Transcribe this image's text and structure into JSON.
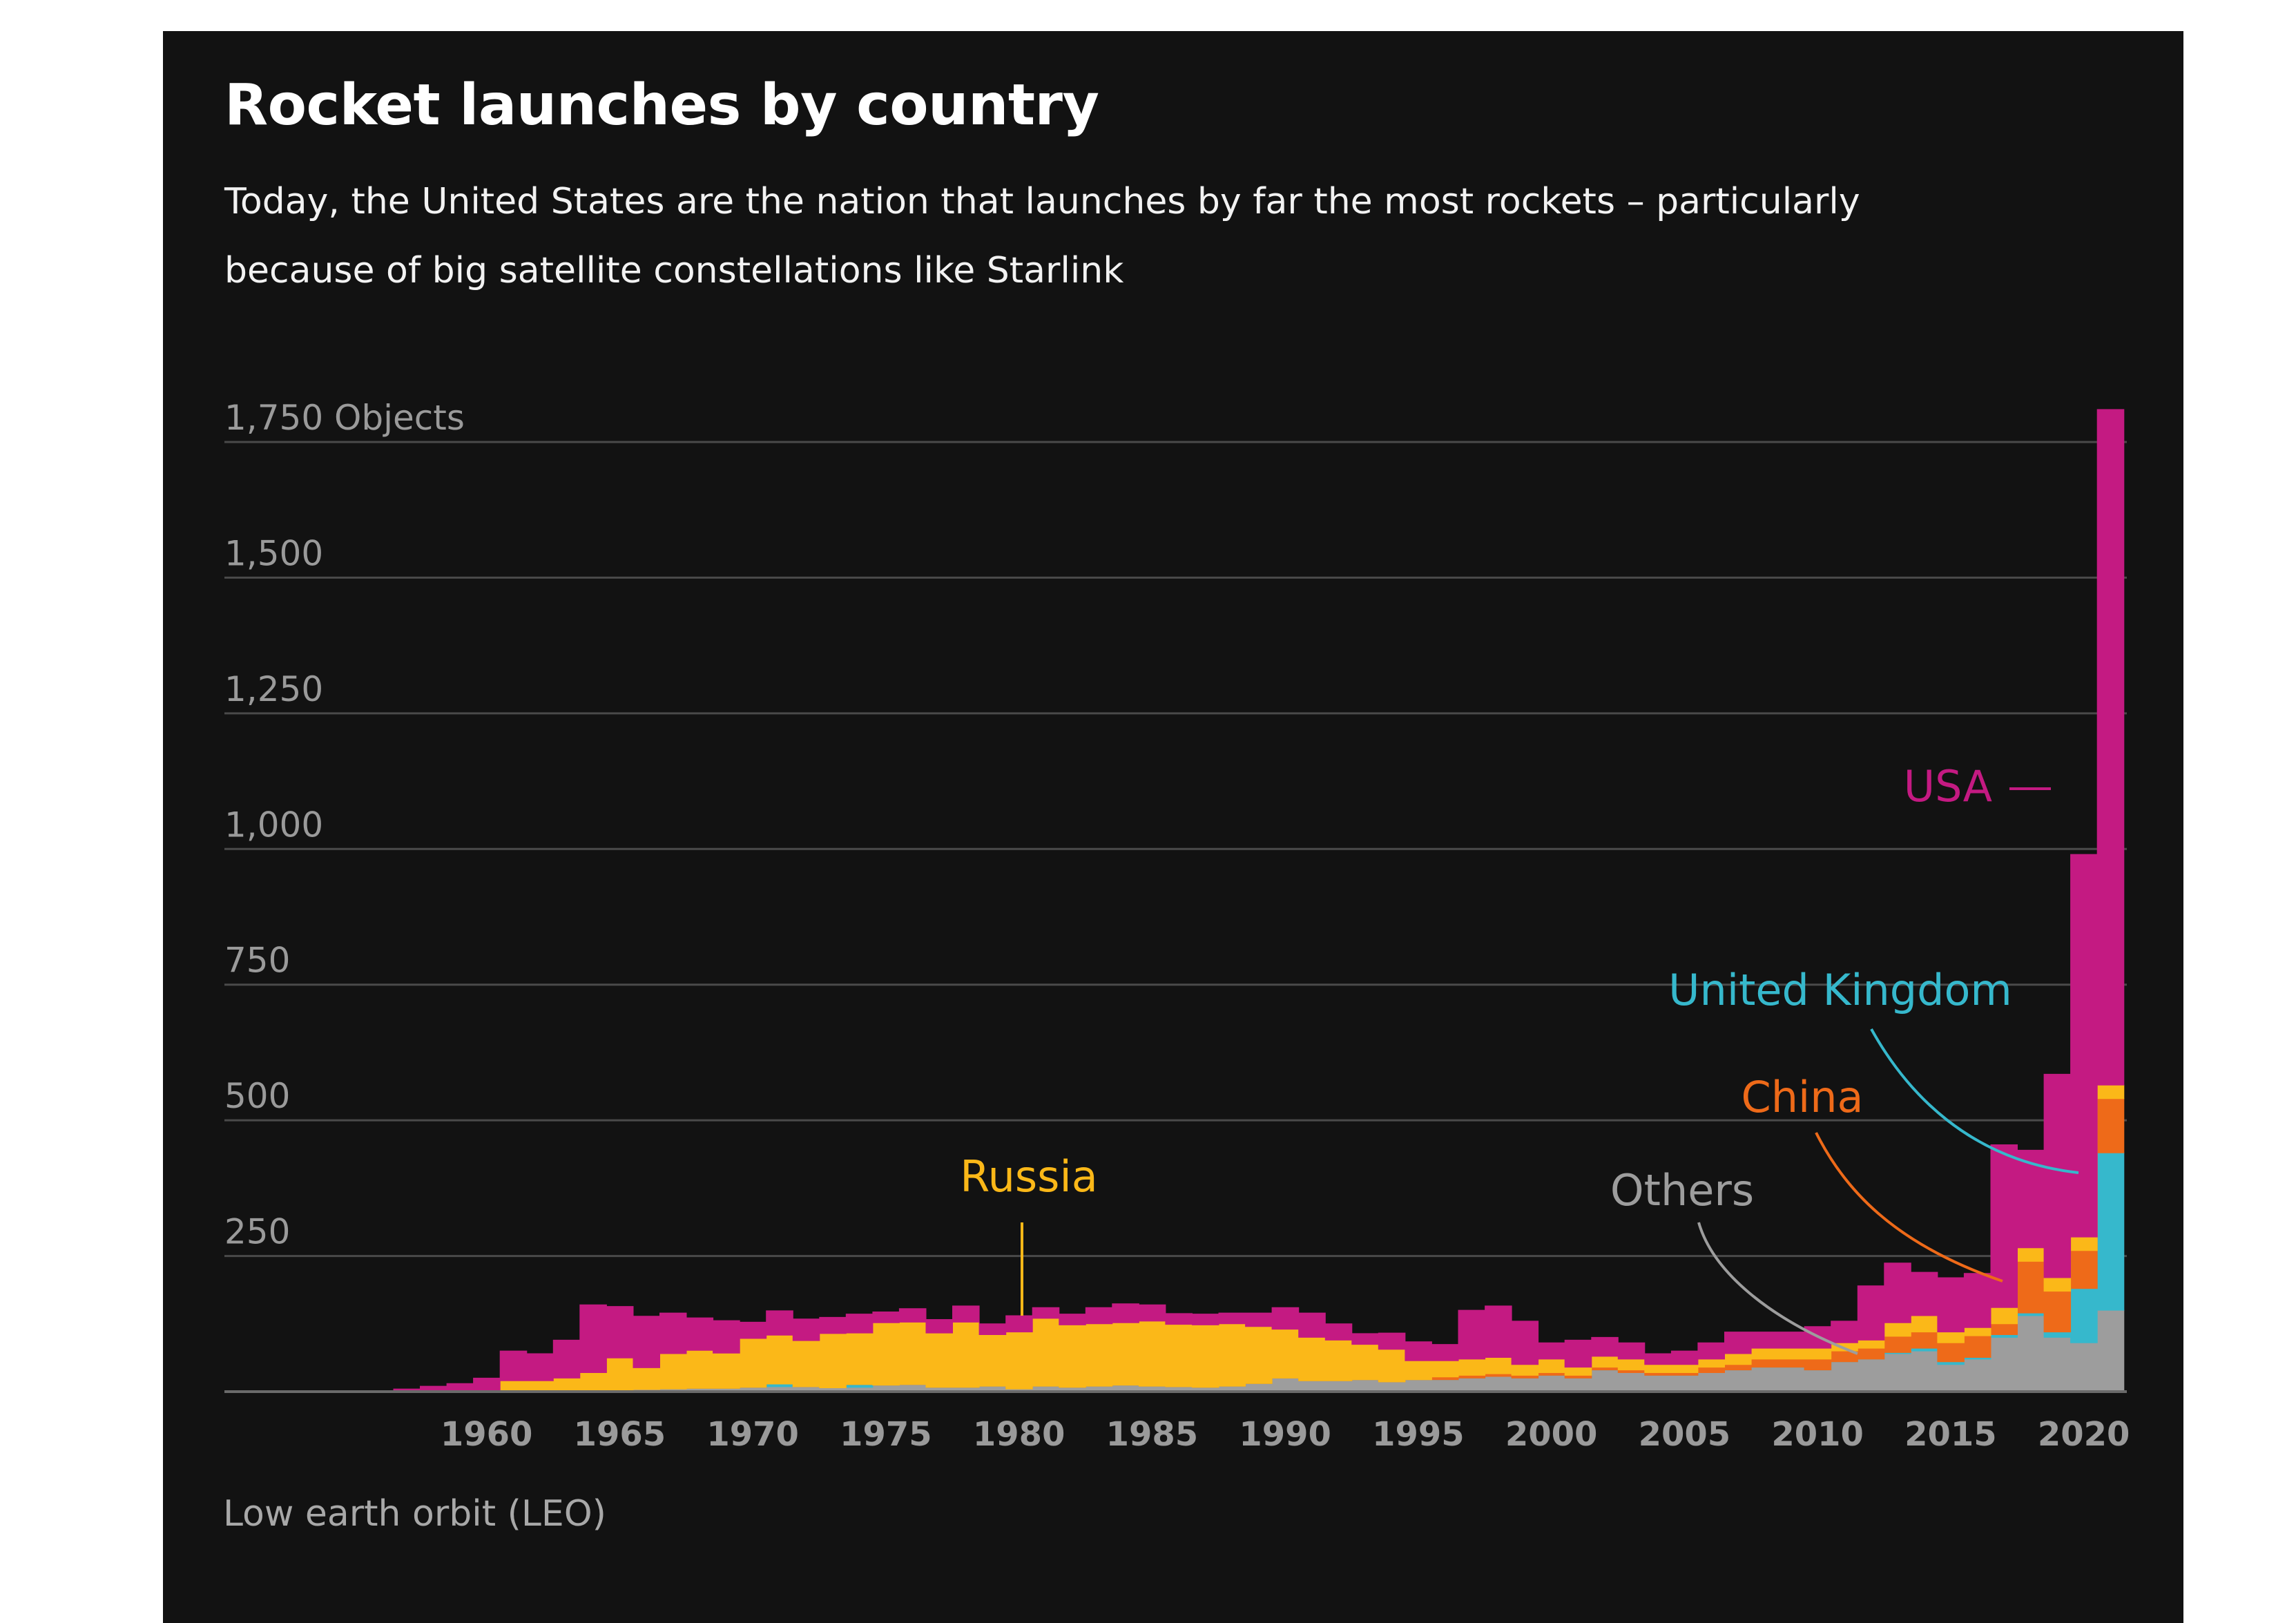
{
  "title": "Rocket launches by country",
  "subtitle": "Today, the United States are the nation that launches by far the most rockets – particularly because of big satellite constellations like Starlink",
  "footnote": "Low earth orbit (LEO)",
  "colors": {
    "background": "#121212",
    "others": "#9d9d9d",
    "uk": "#36b8cc",
    "china": "#ee6a19",
    "russia": "#fbb818",
    "usa": "#c41a82",
    "grid": "#4a4a4a",
    "tick_text": "#9a9a9a"
  },
  "chart_data": {
    "type": "area",
    "stacked": true,
    "step": true,
    "ylim": [
      0,
      1800
    ],
    "yticks": [
      250,
      500,
      750,
      1000,
      1250,
      1500,
      1750
    ],
    "ytick_labels": [
      "250",
      "500",
      "750",
      "1,000",
      "1,250",
      "1,500",
      "1,750 Objects"
    ],
    "xlim": [
      1951.5,
      2021.5
    ],
    "xticks": [
      1960,
      1965,
      1970,
      1975,
      1980,
      1985,
      1990,
      1995,
      2000,
      2005,
      2010,
      2015,
      2020
    ],
    "x": [
      1957,
      1958,
      1959,
      1960,
      1961,
      1962,
      1963,
      1964,
      1965,
      1966,
      1967,
      1968,
      1969,
      1970,
      1971,
      1972,
      1973,
      1974,
      1975,
      1976,
      1977,
      1978,
      1979,
      1980,
      1981,
      1982,
      1983,
      1984,
      1985,
      1986,
      1987,
      1988,
      1989,
      1990,
      1991,
      1992,
      1993,
      1994,
      1995,
      1996,
      1997,
      1998,
      1999,
      2000,
      2001,
      2002,
      2003,
      2004,
      2005,
      2006,
      2007,
      2008,
      2009,
      2010,
      2011,
      2012,
      2013,
      2014,
      2015,
      2016,
      2017,
      2018,
      2019,
      2020,
      2021
    ],
    "series": [
      {
        "name": "Others",
        "key": "others",
        "values": [
          0,
          0,
          0,
          0,
          0,
          0,
          0,
          0,
          2,
          4,
          5,
          6,
          6,
          8,
          9,
          9,
          7,
          8,
          12,
          13,
          8,
          8,
          10,
          5,
          10,
          8,
          10,
          12,
          10,
          9,
          8,
          10,
          15,
          25,
          20,
          20,
          22,
          18,
          22,
          22,
          25,
          28,
          25,
          30,
          25,
          40,
          35,
          30,
          30,
          35,
          40,
          45,
          45,
          40,
          55,
          60,
          70,
          75,
          50,
          60,
          100,
          140,
          100,
          90,
          150
        ]
      },
      {
        "name": "United Kingdom",
        "key": "uk",
        "values": [
          0,
          0,
          0,
          0,
          0,
          0,
          0,
          0,
          0,
          0,
          0,
          0,
          0,
          0,
          5,
          0,
          0,
          5,
          0,
          0,
          0,
          0,
          0,
          0,
          0,
          0,
          0,
          0,
          0,
          0,
          0,
          0,
          0,
          0,
          0,
          0,
          0,
          0,
          0,
          0,
          0,
          0,
          0,
          0,
          0,
          0,
          0,
          0,
          0,
          0,
          0,
          0,
          0,
          0,
          0,
          0,
          2,
          5,
          5,
          3,
          5,
          5,
          10,
          100,
          290
        ]
      },
      {
        "name": "China",
        "key": "china",
        "values": [
          0,
          0,
          0,
          0,
          0,
          0,
          0,
          0,
          0,
          0,
          0,
          0,
          0,
          0,
          0,
          0,
          0,
          0,
          0,
          0,
          0,
          0,
          0,
          0,
          0,
          0,
          0,
          0,
          0,
          0,
          0,
          0,
          0,
          0,
          0,
          0,
          0,
          0,
          0,
          5,
          5,
          5,
          5,
          5,
          5,
          5,
          5,
          5,
          5,
          10,
          10,
          15,
          15,
          20,
          20,
          20,
          30,
          30,
          35,
          40,
          20,
          95,
          75,
          70,
          100
        ]
      },
      {
        "name": "Russia",
        "key": "russia",
        "values": [
          0,
          0,
          0,
          0,
          20,
          20,
          25,
          35,
          60,
          40,
          65,
          70,
          65,
          90,
          90,
          85,
          100,
          95,
          115,
          115,
          100,
          120,
          95,
          105,
          125,
          115,
          115,
          115,
          120,
          115,
          115,
          115,
          105,
          90,
          80,
          75,
          65,
          60,
          35,
          30,
          30,
          30,
          20,
          25,
          15,
          20,
          20,
          15,
          15,
          15,
          20,
          20,
          20,
          20,
          15,
          15,
          25,
          30,
          20,
          15,
          30,
          25,
          25,
          25,
          25
        ]
      },
      {
        "name": "USA",
        "key": "usa",
        "values": [
          5,
          10,
          15,
          25,
          55,
          50,
          70,
          125,
          95,
          95,
          75,
          60,
          60,
          30,
          45,
          40,
          30,
          35,
          20,
          25,
          25,
          30,
          20,
          30,
          20,
          20,
          30,
          35,
          30,
          20,
          20,
          20,
          25,
          40,
          45,
          30,
          20,
          30,
          35,
          30,
          90,
          95,
          80,
          30,
          50,
          35,
          30,
          20,
          25,
          30,
          40,
          30,
          30,
          40,
          40,
          100,
          110,
          80,
          100,
          100,
          300,
          180,
          375,
          705,
          1245
        ]
      }
    ],
    "annotations": [
      {
        "series": "russia",
        "label": "Russia"
      },
      {
        "series": "others",
        "label": "Others"
      },
      {
        "series": "china",
        "label": "China"
      },
      {
        "series": "uk",
        "label": "United Kingdom"
      },
      {
        "series": "usa",
        "label": "USA"
      }
    ]
  }
}
